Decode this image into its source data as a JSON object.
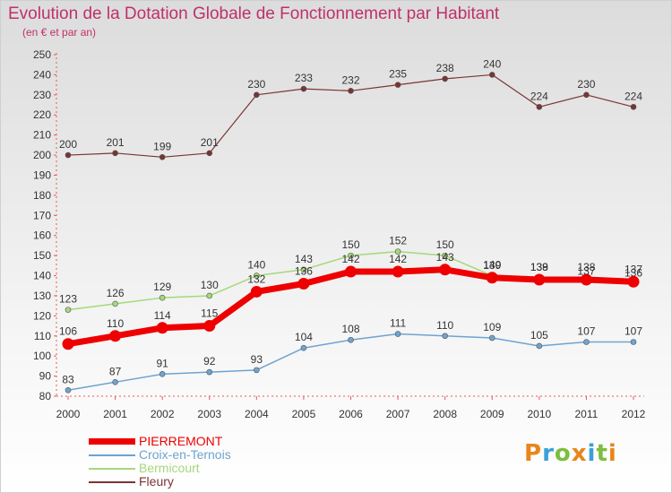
{
  "chart_data": {
    "type": "line",
    "title": "Evolution de la Dotation Globale de Fonctionnement par Habitant",
    "subtitle": "(en € et par an)",
    "xlabel": "",
    "ylabel": "",
    "x": [
      "2000",
      "2001",
      "2002",
      "2003",
      "2004",
      "2005",
      "2006",
      "2007",
      "2008",
      "2009",
      "2010",
      "2011",
      "2012"
    ],
    "ylim": [
      80,
      250
    ],
    "yticks": [
      80,
      90,
      100,
      110,
      120,
      130,
      140,
      150,
      160,
      170,
      180,
      190,
      200,
      210,
      220,
      230,
      240,
      250
    ],
    "grid": false,
    "legend_position": "bottom-left",
    "series": [
      {
        "name": "Fleury",
        "color": "#7a3434",
        "width": 1.2,
        "values": [
          200,
          201,
          199,
          201,
          230,
          233,
          232,
          235,
          238,
          240,
          224,
          230,
          224
        ],
        "labels": [
          "200",
          "201",
          "199",
          "201",
          "230",
          "233",
          "232",
          "235",
          "238",
          "240",
          "224",
          "230",
          "224"
        ]
      },
      {
        "name": "Bermicourt",
        "color": "#a6d87a",
        "width": 1.5,
        "values": [
          123,
          126,
          129,
          130,
          140,
          143,
          150,
          152,
          150,
          140,
          139,
          137,
          136
        ],
        "labels": [
          "123",
          "126",
          "129",
          "130",
          "140",
          "143",
          "150",
          "152",
          "150",
          "140",
          "139",
          "137",
          "136"
        ]
      },
      {
        "name": "Croix-en-Ternois",
        "color": "#6fa3d0",
        "width": 1.5,
        "values": [
          83,
          87,
          91,
          92,
          93,
          104,
          108,
          111,
          110,
          109,
          105,
          107,
          107
        ],
        "labels": [
          "83",
          "87",
          "91",
          "92",
          "93",
          "104",
          "108",
          "111",
          "110",
          "109",
          "105",
          "107",
          "107"
        ]
      },
      {
        "name": "PIERREMONT",
        "color": "#ee0000",
        "width": 7,
        "values": [
          106,
          110,
          114,
          115,
          132,
          136,
          142,
          142,
          143,
          139,
          138,
          138,
          137
        ],
        "labels": [
          "106",
          "110",
          "114",
          "115",
          "132",
          "136",
          "142",
          "142",
          "143",
          "139",
          "138",
          "138",
          "137"
        ]
      }
    ],
    "legend": [
      "PIERREMONT",
      "Croix-en-Ternois",
      "Bermicourt",
      "Fleury"
    ]
  },
  "legend_colors": {
    "PIERREMONT": "#ee0000",
    "Croix-en-Ternois": "#6fa3d0",
    "Bermicourt": "#a6d87a",
    "Fleury": "#7a3434"
  },
  "brand": {
    "text": "Proxiti",
    "colors": [
      "#e8861a",
      "#3aa0d8",
      "#7cbf3c",
      "#e8861a",
      "#3aa0d8",
      "#7cbf3c",
      "#e8861a"
    ]
  }
}
